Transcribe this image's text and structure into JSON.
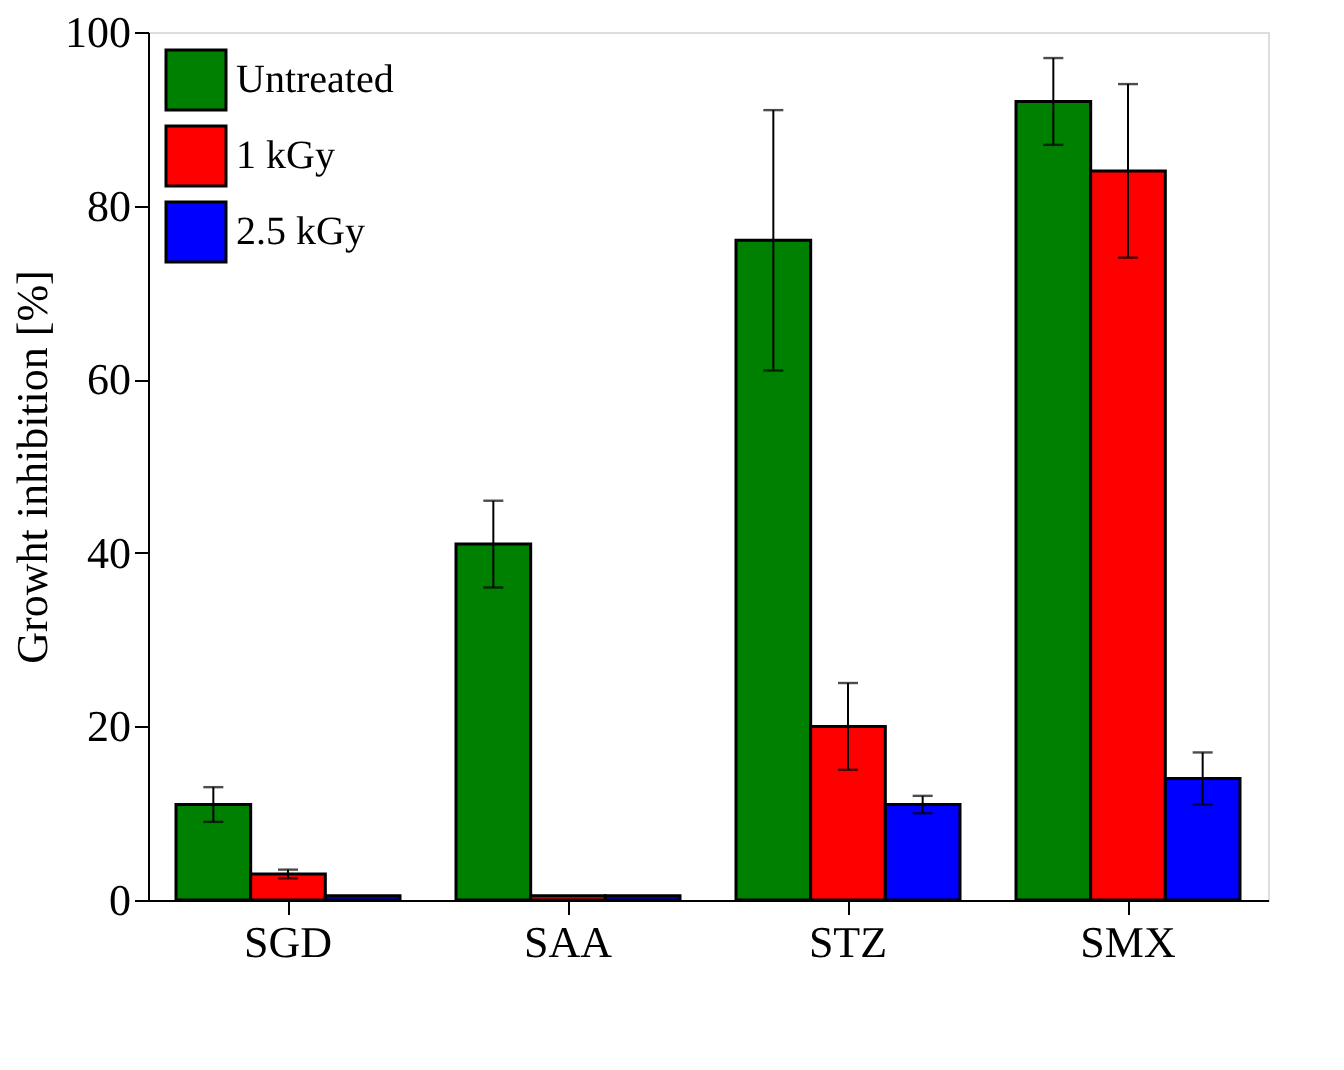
{
  "chart_data": {
    "type": "bar",
    "ylabel": "Growht inhibition [%]",
    "categories": [
      "SGD",
      "SAA",
      "STZ",
      "SMX"
    ],
    "series": [
      {
        "name": "Untreated",
        "color": "#008000",
        "values": [
          11,
          41,
          76,
          92
        ],
        "errors": [
          2,
          5,
          15,
          5
        ]
      },
      {
        "name": "1 kGy",
        "color": "#ff0000",
        "values": [
          3,
          0.5,
          20,
          84
        ],
        "errors": [
          0.5,
          null,
          5,
          10
        ]
      },
      {
        "name": "2.5 kGy",
        "color": "#0000ff",
        "values": [
          0.5,
          0.5,
          11,
          14
        ],
        "errors": [
          null,
          null,
          1,
          3
        ]
      }
    ],
    "ylim": [
      0,
      100
    ],
    "yticks": [
      0,
      20,
      40,
      60,
      80,
      100
    ],
    "grid": false,
    "legend": "top left"
  }
}
